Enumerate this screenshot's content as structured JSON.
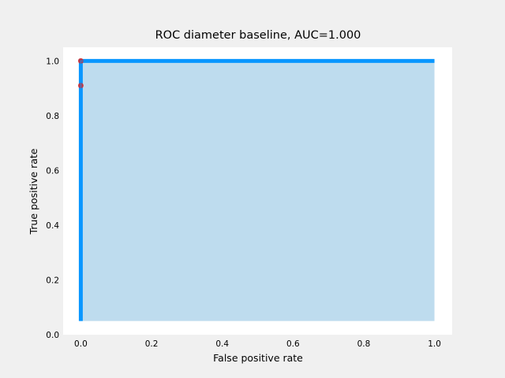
{
  "chart_data": {
    "type": "line",
    "title": "ROC diameter baseline, AUC=1.000",
    "xlabel": "False positive rate",
    "ylabel": "True positive rate",
    "xlim": [
      -0.05,
      1.05
    ],
    "ylim": [
      0.0,
      1.05
    ],
    "x_ticks": [
      0.0,
      0.2,
      0.4,
      0.6,
      0.8,
      1.0
    ],
    "x_tick_labels": [
      "0.0",
      "0.2",
      "0.4",
      "0.6",
      "0.8",
      "1.0"
    ],
    "y_ticks": [
      0.0,
      0.2,
      0.4,
      0.6,
      0.8,
      1.0
    ],
    "y_tick_labels": [
      "0.0",
      "0.2",
      "0.4",
      "0.6",
      "0.8",
      "1.0"
    ],
    "grid": false,
    "series": [
      {
        "name": "ROC curve",
        "color": "#0a97ff",
        "fill_color": "#bedcee",
        "fill_baseline": 0.05,
        "x": [
          0.0,
          0.0,
          0.0,
          1.0
        ],
        "y": [
          0.05,
          0.91,
          1.0,
          1.0
        ]
      }
    ],
    "markers": [
      {
        "name": "threshold-point",
        "x": 0.0,
        "y": 1.0,
        "color": "#d62728"
      },
      {
        "name": "threshold-point",
        "x": 0.0,
        "y": 0.91,
        "color": "#d62728"
      }
    ]
  },
  "colors": {
    "figure_background": "#f0f0f0",
    "axes_background": "#ffffff"
  }
}
